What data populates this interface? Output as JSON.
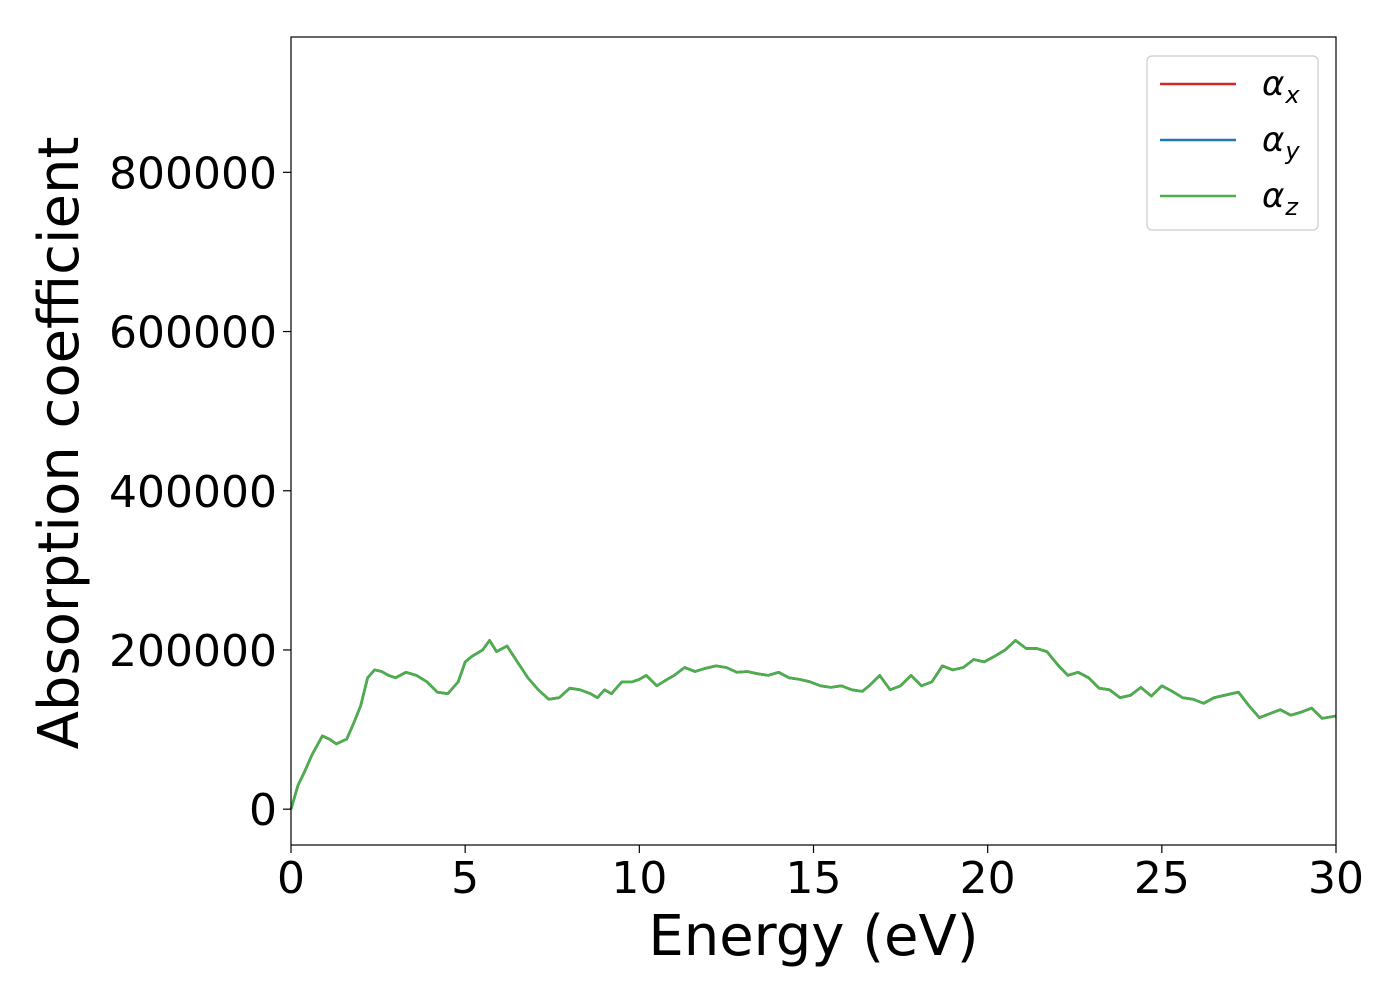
{
  "chart_data": {
    "type": "line",
    "title": "",
    "xlabel": "Energy (eV)",
    "ylabel": "Absorption coefficient",
    "xlim": [
      0,
      30
    ],
    "ylim": [
      -45000,
      970000
    ],
    "xticks": [
      0,
      5,
      10,
      15,
      20,
      25,
      30
    ],
    "yticks": [
      0,
      200000,
      400000,
      600000,
      800000
    ],
    "xtick_labels": [
      "0",
      "5",
      "10",
      "15",
      "20",
      "25",
      "30"
    ],
    "ytick_labels": [
      "0",
      "200000",
      "400000",
      "600000",
      "800000"
    ],
    "grid": false,
    "legend_position": "top-right",
    "x": [
      0,
      0.2,
      0.4,
      0.6,
      0.9,
      1.1,
      1.3,
      1.6,
      1.8,
      2.0,
      2.2,
      2.4,
      2.6,
      2.8,
      3.0,
      3.3,
      3.6,
      3.9,
      4.2,
      4.5,
      4.8,
      5.0,
      5.2,
      5.5,
      5.7,
      5.9,
      6.2,
      6.5,
      6.8,
      7.1,
      7.4,
      7.7,
      8.0,
      8.3,
      8.6,
      8.8,
      9.0,
      9.2,
      9.5,
      9.8,
      10.0,
      10.2,
      10.5,
      10.8,
      11.0,
      11.3,
      11.6,
      11.9,
      12.2,
      12.5,
      12.8,
      13.1,
      13.4,
      13.7,
      14.0,
      14.3,
      14.6,
      14.9,
      15.2,
      15.5,
      15.8,
      16.1,
      16.4,
      16.6,
      16.9,
      17.2,
      17.5,
      17.8,
      18.1,
      18.4,
      18.7,
      19.0,
      19.3,
      19.6,
      19.9,
      20.2,
      20.5,
      20.8,
      21.1,
      21.4,
      21.7,
      22.0,
      22.3,
      22.6,
      22.9,
      23.2,
      23.5,
      23.8,
      24.1,
      24.4,
      24.7,
      25.0,
      25.3,
      25.6,
      25.9,
      26.2,
      26.5,
      26.8,
      27.0,
      27.2,
      27.5,
      27.8,
      28.1,
      28.4,
      28.7,
      29.0,
      29.3,
      29.6,
      30.0
    ],
    "series": [
      {
        "name": "α_x",
        "color": "#d62728",
        "values": [
          0,
          30000,
          48000,
          68000,
          92000,
          88000,
          82000,
          88000,
          108000,
          130000,
          165000,
          175000,
          173000,
          168000,
          165000,
          172000,
          168000,
          160000,
          147000,
          145000,
          160000,
          185000,
          192000,
          200000,
          212000,
          198000,
          205000,
          185000,
          165000,
          150000,
          138000,
          140000,
          152000,
          150000,
          145000,
          140000,
          150000,
          145000,
          160000,
          160000,
          163000,
          168000,
          155000,
          163000,
          168000,
          178000,
          173000,
          177000,
          180000,
          178000,
          172000,
          173000,
          170000,
          168000,
          172000,
          165000,
          163000,
          160000,
          155000,
          153000,
          155000,
          150000,
          148000,
          155000,
          168000,
          150000,
          155000,
          168000,
          155000,
          160000,
          180000,
          175000,
          178000,
          188000,
          185000,
          192000,
          200000,
          212000,
          202000,
          202000,
          198000,
          182000,
          168000,
          172000,
          165000,
          152000,
          150000,
          140000,
          143000,
          153000,
          142000,
          155000,
          148000,
          140000,
          138000,
          133000,
          140000,
          143000,
          145000,
          147000,
          130000,
          115000,
          120000,
          125000,
          118000,
          122000,
          127000,
          114000,
          117000
        ]
      },
      {
        "name": "α_y",
        "color": "#1f77b4",
        "values": [
          0,
          30000,
          48000,
          68000,
          92000,
          88000,
          82000,
          88000,
          108000,
          130000,
          165000,
          175000,
          173000,
          168000,
          165000,
          172000,
          168000,
          160000,
          147000,
          145000,
          160000,
          185000,
          192000,
          200000,
          212000,
          198000,
          205000,
          185000,
          165000,
          150000,
          138000,
          140000,
          152000,
          150000,
          145000,
          140000,
          150000,
          145000,
          160000,
          160000,
          163000,
          168000,
          155000,
          163000,
          168000,
          178000,
          173000,
          177000,
          180000,
          178000,
          172000,
          173000,
          170000,
          168000,
          172000,
          165000,
          163000,
          160000,
          155000,
          153000,
          155000,
          150000,
          148000,
          155000,
          168000,
          150000,
          155000,
          168000,
          155000,
          160000,
          180000,
          175000,
          178000,
          188000,
          185000,
          192000,
          200000,
          212000,
          202000,
          202000,
          198000,
          182000,
          168000,
          172000,
          165000,
          152000,
          150000,
          140000,
          143000,
          153000,
          142000,
          155000,
          148000,
          140000,
          138000,
          133000,
          140000,
          143000,
          145000,
          147000,
          130000,
          115000,
          120000,
          125000,
          118000,
          122000,
          127000,
          114000,
          117000
        ]
      },
      {
        "name": "α_z",
        "color": "#4daf4a",
        "values": [
          0,
          30000,
          48000,
          68000,
          92000,
          88000,
          82000,
          88000,
          108000,
          130000,
          165000,
          175000,
          173000,
          168000,
          165000,
          172000,
          168000,
          160000,
          147000,
          145000,
          160000,
          185000,
          192000,
          200000,
          212000,
          198000,
          205000,
          185000,
          165000,
          150000,
          138000,
          140000,
          152000,
          150000,
          145000,
          140000,
          150000,
          145000,
          160000,
          160000,
          163000,
          168000,
          155000,
          163000,
          168000,
          178000,
          173000,
          177000,
          180000,
          178000,
          172000,
          173000,
          170000,
          168000,
          172000,
          165000,
          163000,
          160000,
          155000,
          153000,
          155000,
          150000,
          148000,
          155000,
          168000,
          150000,
          155000,
          168000,
          155000,
          160000,
          180000,
          175000,
          178000,
          188000,
          185000,
          192000,
          200000,
          212000,
          202000,
          202000,
          198000,
          182000,
          168000,
          172000,
          165000,
          152000,
          150000,
          140000,
          143000,
          153000,
          142000,
          155000,
          148000,
          140000,
          138000,
          133000,
          140000,
          143000,
          145000,
          147000,
          130000,
          115000,
          120000,
          125000,
          118000,
          122000,
          127000,
          114000,
          117000
        ]
      }
    ],
    "legend": [
      {
        "symbol": "α",
        "sub": "x"
      },
      {
        "symbol": "α",
        "sub": "y"
      },
      {
        "symbol": "α",
        "sub": "z"
      }
    ]
  }
}
